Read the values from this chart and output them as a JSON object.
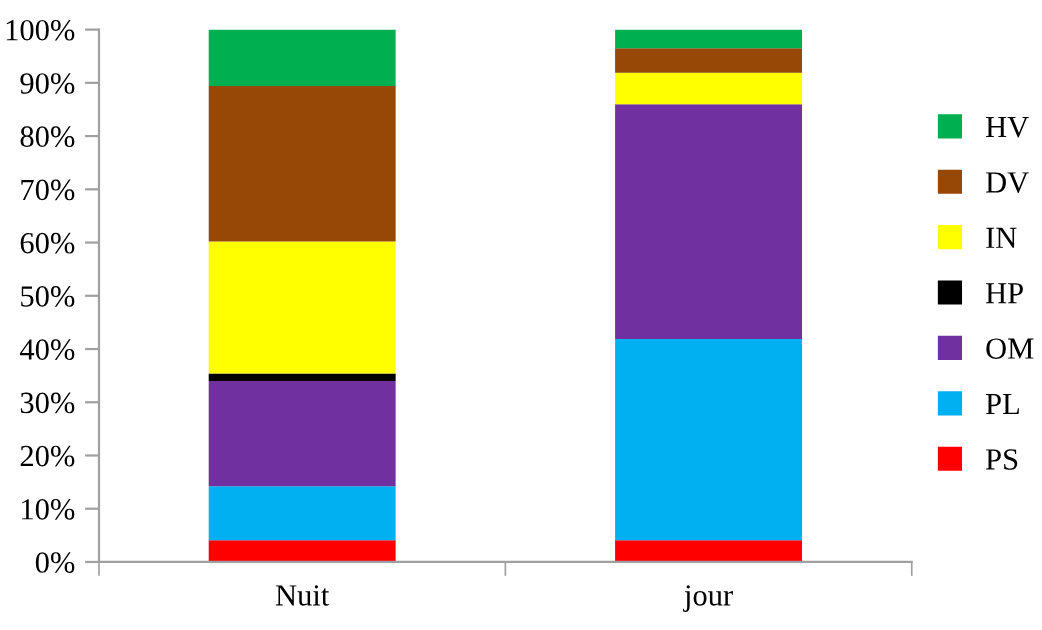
{
  "chart_data": {
    "type": "bar",
    "stacked": true,
    "categories": [
      "Nuit",
      "jour"
    ],
    "series": [
      {
        "name": "PS",
        "color": "#ff0000",
        "values": [
          4.1,
          4.1
        ]
      },
      {
        "name": "PL",
        "color": "#00b0f0",
        "values": [
          10.1,
          37.8
        ]
      },
      {
        "name": "OM",
        "color": "#7030a0",
        "values": [
          19.8,
          44.1
        ]
      },
      {
        "name": "HP",
        "color": "#000000",
        "values": [
          1.4,
          0
        ]
      },
      {
        "name": "IN",
        "color": "#ffff00",
        "values": [
          24.8,
          5.9
        ]
      },
      {
        "name": "DV",
        "color": "#974706",
        "values": [
          29.2,
          4.6
        ]
      },
      {
        "name": "HV",
        "color": "#00b050",
        "values": [
          10.6,
          3.5
        ]
      }
    ],
    "ylim": [
      0,
      100
    ],
    "yticks": [
      {
        "value": 0,
        "label": "0%"
      },
      {
        "value": 10,
        "label": "10%"
      },
      {
        "value": 20,
        "label": "20%"
      },
      {
        "value": 30,
        "label": "30%"
      },
      {
        "value": 40,
        "label": "40%"
      },
      {
        "value": 50,
        "label": "50%"
      },
      {
        "value": 60,
        "label": "60%"
      },
      {
        "value": 70,
        "label": "70%"
      },
      {
        "value": 80,
        "label": "80%"
      },
      {
        "value": 90,
        "label": "90%"
      },
      {
        "value": 100,
        "label": "100%"
      }
    ],
    "grid": false,
    "legend": "right"
  }
}
